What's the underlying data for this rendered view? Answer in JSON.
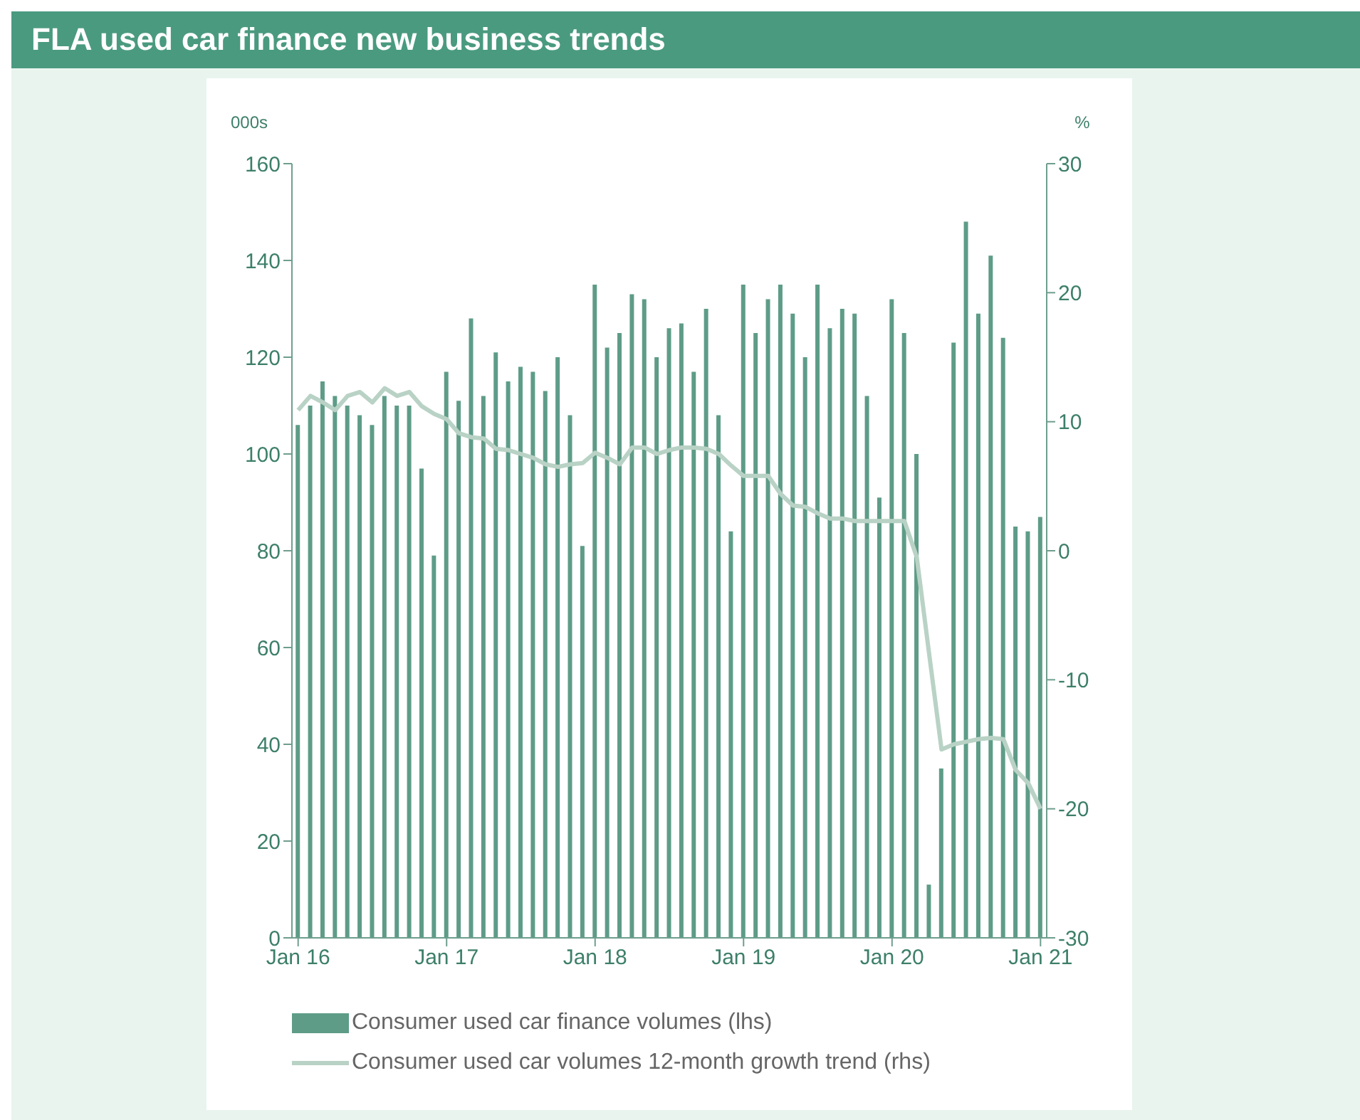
{
  "chart_data": {
    "type": "bar",
    "title": "FLA used car finance new business trends",
    "ylabel": "000s",
    "y2label": "%",
    "categories": [
      "Jan 16",
      null,
      null,
      null,
      null,
      null,
      null,
      null,
      null,
      null,
      null,
      null,
      "Jan 17",
      null,
      null,
      null,
      null,
      null,
      null,
      null,
      null,
      null,
      null,
      null,
      "Jan 18",
      null,
      null,
      null,
      null,
      null,
      null,
      null,
      null,
      null,
      null,
      null,
      "Jan 19",
      null,
      null,
      null,
      null,
      null,
      null,
      null,
      null,
      null,
      null,
      null,
      "Jan 20",
      null,
      null,
      null,
      null,
      null,
      null,
      null,
      null,
      null,
      null,
      null,
      "Jan 21"
    ],
    "series": [
      {
        "name": "Consumer used car finance volumes (lhs)",
        "type": "bar",
        "color": "#5e9c88",
        "values": [
          106,
          110,
          115,
          112,
          110,
          108,
          106,
          112,
          110,
          110,
          97,
          79,
          117,
          111,
          128,
          112,
          121,
          115,
          118,
          117,
          113,
          120,
          108,
          81,
          135,
          122,
          125,
          133,
          132,
          120,
          126,
          127,
          117,
          130,
          108,
          84,
          135,
          125,
          132,
          135,
          129,
          120,
          135,
          126,
          130,
          129,
          112,
          91,
          132,
          125,
          100,
          11,
          35,
          123,
          148,
          129,
          141,
          124,
          85,
          84,
          87
        ]
      },
      {
        "name": "Consumer used car volumes 12-month growth trend (rhs)",
        "type": "line",
        "axis": "y2",
        "color": "#b9d2c6",
        "values": [
          10.9,
          12,
          11.5,
          10.9,
          12,
          12.3,
          11.5,
          12.6,
          12,
          12.3,
          11.2,
          10.6,
          10.2,
          9.1,
          8.8,
          8.7,
          7.9,
          7.8,
          7.5,
          7.2,
          6.7,
          6.5,
          6.7,
          6.8,
          7.6,
          7.2,
          6.7,
          8,
          8,
          7.5,
          7.8,
          8,
          8,
          7.9,
          7.5,
          6.6,
          5.8,
          5.8,
          5.8,
          4.4,
          3.5,
          3.4,
          2.9,
          2.5,
          2.5,
          2.3,
          2.3,
          2.3,
          2.3,
          2.3,
          -0.5,
          -8,
          -15.4,
          -15,
          -14.8,
          -14.6,
          -14.5,
          -14.6,
          -17,
          -18,
          -20
        ]
      }
    ],
    "ylim": [
      0,
      160
    ],
    "yticks": [
      0,
      20,
      40,
      60,
      80,
      100,
      120,
      140,
      160
    ],
    "y2lim": [
      -30,
      30
    ],
    "y2ticks": [
      -30,
      -20,
      -10,
      0,
      10,
      20,
      30
    ],
    "grid": false,
    "legend": "bottom",
    "marker": "none",
    "line_style": "solid"
  }
}
